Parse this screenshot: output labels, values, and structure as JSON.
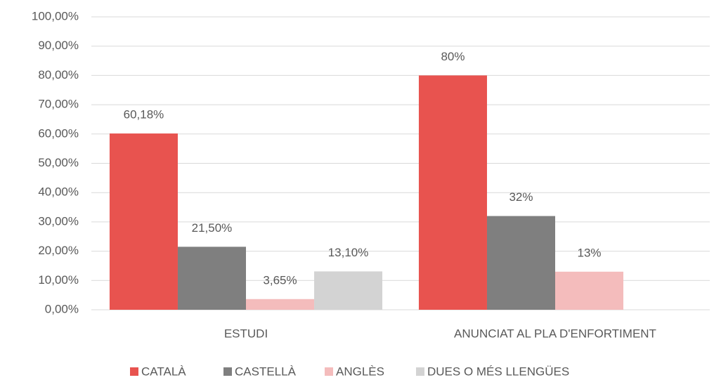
{
  "chart_data": {
    "type": "bar",
    "categories": [
      "ESTUDI",
      "ANUNCIAT AL PLA D'ENFORTIMENT"
    ],
    "series": [
      {
        "name": "CATALÀ",
        "color": "#e8534f",
        "values": [
          60.18,
          80
        ],
        "value_labels": [
          "60,18%",
          "80%"
        ]
      },
      {
        "name": "CASTELLÀ",
        "color": "#7f7f7f",
        "values": [
          21.5,
          32
        ],
        "value_labels": [
          "21,50%",
          "32%"
        ]
      },
      {
        "name": "ANGLÈS",
        "color": "#f4bcbc",
        "values": [
          3.65,
          13
        ],
        "value_labels": [
          "3,65%",
          "13%"
        ]
      },
      {
        "name": "DUES O MÉS LLENGÜES",
        "color": "#d3d3d3",
        "values": [
          13.1,
          null
        ],
        "value_labels": [
          "13,10%",
          null
        ]
      }
    ],
    "ylim": [
      0,
      100
    ],
    "yticks": [
      {
        "value": 0,
        "label": "0,00%"
      },
      {
        "value": 10,
        "label": "10,00%"
      },
      {
        "value": 20,
        "label": "20,00%"
      },
      {
        "value": 30,
        "label": "30,00%"
      },
      {
        "value": 40,
        "label": "40,00%"
      },
      {
        "value": 50,
        "label": "50,00%"
      },
      {
        "value": 60,
        "label": "60,00%"
      },
      {
        "value": 70,
        "label": "70,00%"
      },
      {
        "value": 80,
        "label": "80,00%"
      },
      {
        "value": 90,
        "label": "90,00%"
      },
      {
        "value": 100,
        "label": "100,00%"
      }
    ],
    "grid": true,
    "legend": "bottom"
  }
}
